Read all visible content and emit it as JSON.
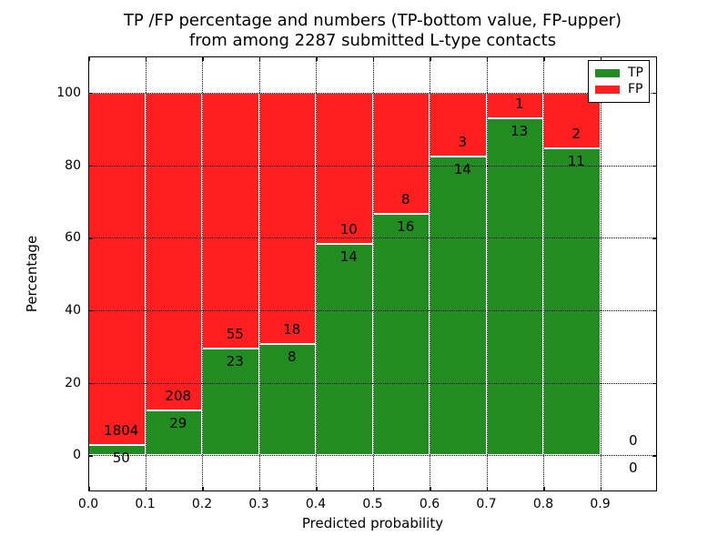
{
  "title": {
    "line1": "TP /FP percentage and numbers (TP-bottom value, FP-upper)",
    "line2": "from among 2287 submitted L-type contacts"
  },
  "axes": {
    "xlabel": "Predicted probability",
    "ylabel": "Percentage"
  },
  "legend": {
    "position": "upper-right",
    "entries": [
      {
        "label": "TP",
        "color": "#228b22"
      },
      {
        "label": "FP",
        "color": "#ff1f1f"
      }
    ]
  },
  "chart_data": {
    "type": "bar",
    "stacked": true,
    "title": "TP /FP percentage and numbers (TP-bottom value, FP-upper) from among 2287 submitted L-type contacts",
    "xlabel": "Predicted probability",
    "ylabel": "Percentage",
    "xlim": [
      0,
      1.0
    ],
    "ylim": [
      -10,
      110
    ],
    "xticks": [
      0.0,
      0.1,
      0.2,
      0.3,
      0.4,
      0.5,
      0.6,
      0.7,
      0.8,
      0.9
    ],
    "xtick_labels": [
      "0.0",
      "0.1",
      "0.2",
      "0.3",
      "0.4",
      "0.5",
      "0.6",
      "0.7",
      "0.8",
      "0.9"
    ],
    "yticks": [
      0,
      20,
      40,
      60,
      80,
      100
    ],
    "ytick_labels": [
      "0",
      "20",
      "40",
      "60",
      "80",
      "100"
    ],
    "grid": true,
    "grid_style": "dotted",
    "total_contacts": 2287,
    "bin_start": [
      0.0,
      0.1,
      0.2,
      0.3,
      0.4,
      0.5,
      0.6,
      0.7,
      0.8,
      0.9
    ],
    "bin_width": 0.1,
    "series": [
      {
        "name": "TP",
        "color": "#228b22",
        "counts": [
          50,
          29,
          23,
          8,
          14,
          16,
          14,
          13,
          11,
          0
        ]
      },
      {
        "name": "FP",
        "color": "#ff1f1f",
        "counts": [
          1804,
          208,
          55,
          18,
          10,
          8,
          3,
          1,
          2,
          0
        ]
      }
    ],
    "tp_percent_of_bin": [
      2.7,
      12.2,
      29.5,
      30.8,
      58.3,
      66.7,
      82.4,
      92.9,
      84.6,
      null
    ]
  }
}
